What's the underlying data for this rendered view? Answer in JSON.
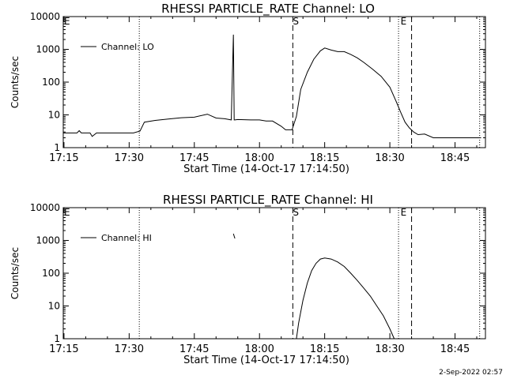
{
  "footer": {
    "date": "2-Sep-2022 02:57"
  },
  "chart_data": [
    {
      "type": "line",
      "title": "RHESSI PARTICLE_RATE Channel: LO",
      "xlabel": "Start Time (14-Oct-17 17:14:50)",
      "ylabel": "Counts/sec",
      "yscale": "log",
      "ylim": [
        1,
        10000
      ],
      "xlim": [
        "17:14:50",
        "18:52:00"
      ],
      "x_ticks": [
        "17:15",
        "17:30",
        "17:45",
        "18:00",
        "18:15",
        "18:30",
        "18:45"
      ],
      "y_ticks": [
        "1",
        "10",
        "100",
        "1000",
        "10000"
      ],
      "markers": [
        {
          "label": "S",
          "time": "18:07:40",
          "style": "dashed"
        },
        {
          "label": "E",
          "time": "18:35:00",
          "style": "dashed"
        }
      ],
      "dotted_lines": [
        "17:32:20",
        "18:32:00",
        "18:50:40"
      ],
      "grid": false,
      "legend": "top-left",
      "series": [
        {
          "name": "Channel: LO",
          "x": [
            "17:14:50",
            "17:18:00",
            "17:18:30",
            "17:19:00",
            "17:21:00",
            "17:21:30",
            "17:22:30",
            "17:25:00",
            "17:27:00",
            "17:29:00",
            "17:31:00",
            "17:32:30",
            "17:33:30",
            "17:36:00",
            "17:39:00",
            "17:42:00",
            "17:45:00",
            "17:48:00",
            "17:50:00",
            "17:52:00",
            "17:53:30",
            "17:54:00",
            "17:54:10",
            "17:54:20",
            "17:55:00",
            "17:58:00",
            "18:00:00",
            "18:01:30",
            "18:03:00",
            "18:05:00",
            "18:06:00",
            "18:07:30",
            "18:08:30",
            "18:09:30",
            "18:11:00",
            "18:12:30",
            "18:14:00",
            "18:15:00",
            "18:16:30",
            "18:18:00",
            "18:19:30",
            "18:21:00",
            "18:22:30",
            "18:24:00",
            "18:26:00",
            "18:28:00",
            "18:30:00",
            "18:31:30",
            "18:32:30",
            "18:33:30",
            "18:34:30",
            "18:35:30",
            "18:36:30",
            "18:38:00",
            "18:40:00",
            "18:42:00",
            "18:44:00",
            "18:46:00",
            "18:48:00",
            "18:50:00",
            "18:51:00"
          ],
          "y": [
            2.8,
            2.8,
            3.3,
            2.8,
            2.8,
            2.2,
            2.8,
            2.8,
            2.8,
            2.8,
            2.8,
            3.2,
            6.0,
            6.8,
            7.5,
            8.2,
            8.5,
            10.5,
            8.0,
            7.6,
            7.0,
            2800,
            7.0,
            7.0,
            7.2,
            7.0,
            7.0,
            6.5,
            6.5,
            4.5,
            3.5,
            3.5,
            9.0,
            60,
            200,
            500,
            900,
            1100,
            950,
            850,
            850,
            700,
            550,
            400,
            250,
            150,
            70,
            25,
            12,
            6,
            4.0,
            3.0,
            2.5,
            2.6,
            2.0,
            2.0,
            2.0,
            2.0,
            2.0,
            2.0,
            2.0
          ]
        }
      ]
    },
    {
      "type": "line",
      "title": "RHESSI PARTICLE_RATE Channel: HI",
      "xlabel": "Start Time (14-Oct-17 17:14:50)",
      "ylabel": "Counts/sec",
      "yscale": "log",
      "ylim": [
        1,
        10000
      ],
      "xlim": [
        "17:14:50",
        "18:52:00"
      ],
      "x_ticks": [
        "17:15",
        "17:30",
        "17:45",
        "18:00",
        "18:15",
        "18:30",
        "18:45"
      ],
      "y_ticks": [
        "1",
        "10",
        "100",
        "1000",
        "10000"
      ],
      "markers": [
        {
          "label": "S",
          "time": "18:07:40",
          "style": "dashed"
        },
        {
          "label": "E",
          "time": "18:35:00",
          "style": "dashed"
        }
      ],
      "dotted_lines": [
        "17:32:20",
        "18:32:00",
        "18:50:40"
      ],
      "grid": false,
      "legend": "top-left",
      "series": [
        {
          "name": "Channel: HI",
          "x": [
            "18:08:30",
            "18:09:00",
            "18:10:00",
            "18:11:00",
            "18:12:00",
            "18:13:00",
            "18:14:00",
            "18:15:00",
            "18:16:30",
            "18:18:00",
            "18:19:30",
            "18:21:00",
            "18:22:30",
            "18:24:00",
            "18:25:30",
            "18:27:00",
            "18:28:30",
            "18:30:00",
            "18:31:00"
          ],
          "y": [
            1.0,
            3.0,
            15,
            50,
            120,
            200,
            270,
            290,
            270,
            220,
            160,
            100,
            60,
            35,
            20,
            10,
            5,
            2,
            1.0
          ]
        },
        {
          "name": "",
          "x": [
            "17:54:00",
            "17:54:20"
          ],
          "y": [
            1600,
            1150
          ]
        }
      ]
    }
  ]
}
